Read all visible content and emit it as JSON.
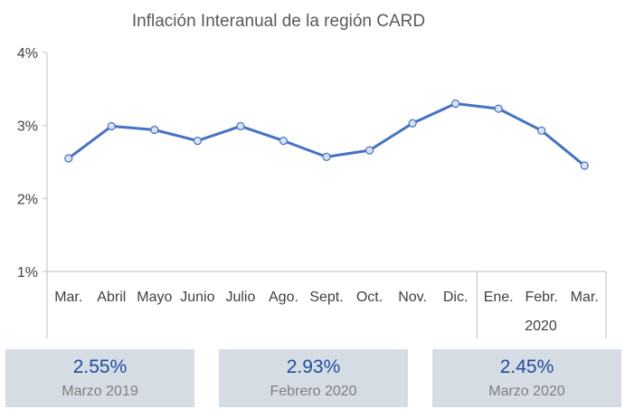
{
  "chart_data": {
    "type": "line",
    "title": "Inflación Interanual de la región CARD",
    "categories": [
      "Mar.",
      "Abril",
      "Mayo",
      "Junio",
      "Julio",
      "Ago.",
      "Sept.",
      "Oct.",
      "Nov.",
      "Dic.",
      "Ene.",
      "Febr.",
      "Mar."
    ],
    "year_group": {
      "label": "2020",
      "from_index": 10
    },
    "series": [
      {
        "values": [
          2.55,
          2.99,
          2.94,
          2.79,
          2.99,
          2.79,
          2.57,
          2.66,
          3.03,
          3.3,
          3.23,
          2.93,
          2.45
        ]
      }
    ],
    "ylim": [
      1,
      4
    ],
    "yticks": [
      "1%",
      "2%",
      "3%",
      "4%"
    ],
    "grid": false,
    "colors": {
      "line": "#4472c4",
      "marker_fill": "#dae3f3"
    }
  },
  "cards": [
    {
      "value": "2.55%",
      "label": "Marzo 2019"
    },
    {
      "value": "2.93%",
      "label": "Febrero 2020"
    },
    {
      "value": "2.45%",
      "label": "Marzo 2020"
    }
  ]
}
